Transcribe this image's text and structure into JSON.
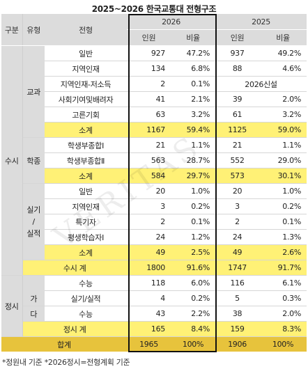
{
  "title": "2025~2026 한국교통대 전형구조",
  "headers": {
    "gubun": "구분",
    "yuhyeong": "유형",
    "jeonhyeong": "전형",
    "year2026": "2026",
    "year2025": "2025",
    "inwon": "인원",
    "biyul": "비율"
  },
  "groups": {
    "susi": "수시",
    "jeongsi": "정시",
    "gyogwa": "교과",
    "hakjong": "학종",
    "silgi": "실기\n/\n실적",
    "ga_da_1": "가",
    "ga_da_2": "다"
  },
  "rows": [
    {
      "name": "일반",
      "i26": "927",
      "r26": "47.2%",
      "i25": "937",
      "r25": "49.2%"
    },
    {
      "name": "지역인재",
      "i26": "134",
      "r26": "6.8%",
      "i25": "88",
      "r25": "4.6%"
    },
    {
      "name": "지역인재-저소득",
      "i26": "2",
      "r26": "0.1%",
      "note25": "2026신설"
    },
    {
      "name": "사회기여및배려자",
      "i26": "41",
      "r26": "2.1%",
      "i25": "39",
      "r25": "2.0%"
    },
    {
      "name": "고른기회",
      "i26": "63",
      "r26": "3.2%",
      "i25": "61",
      "r25": "3.2%"
    },
    {
      "name": "소계",
      "i26": "1167",
      "r26": "59.4%",
      "i25": "1125",
      "r25": "59.0%"
    },
    {
      "name": "학생부종합Ⅰ",
      "i26": "21",
      "r26": "1.1%",
      "i25": "21",
      "r25": "1.1%"
    },
    {
      "name": "학생부종합Ⅱ",
      "i26": "563",
      "r26": "28.7%",
      "i25": "552",
      "r25": "29.0%"
    },
    {
      "name": "소계",
      "i26": "584",
      "r26": "29.7%",
      "i25": "573",
      "r25": "30.1%"
    },
    {
      "name": "일반",
      "i26": "20",
      "r26": "1.0%",
      "i25": "20",
      "r25": "1.0%"
    },
    {
      "name": "지역인재",
      "i26": "3",
      "r26": "0.2%",
      "i25": "3",
      "r25": "0.2%"
    },
    {
      "name": "특기자",
      "i26": "2",
      "r26": "0.1%",
      "i25": "2",
      "r25": "0.1%"
    },
    {
      "name": "평생학습자Ⅰ",
      "i26": "24",
      "r26": "1.2%",
      "i25": "24",
      "r25": "1.3%"
    },
    {
      "name": "소계",
      "i26": "49",
      "r26": "2.5%",
      "i25": "49",
      "r25": "2.6%"
    },
    {
      "name": "수시 계",
      "i26": "1800",
      "r26": "91.6%",
      "i25": "1747",
      "r25": "91.7%"
    },
    {
      "name": "수능",
      "i26": "118",
      "r26": "6.0%",
      "i25": "116",
      "r25": "6.1%"
    },
    {
      "name": "실기/실적",
      "i26": "4",
      "r26": "0.2%",
      "i25": "5",
      "r25": "0.3%"
    },
    {
      "name": "수능",
      "i26": "43",
      "r26": "2.2%",
      "i25": "38",
      "r25": "2.0%"
    },
    {
      "name": "정시 계",
      "i26": "165",
      "r26": "8.4%",
      "i25": "159",
      "r25": "8.3%"
    },
    {
      "name": "합계",
      "i26": "1965",
      "r26": "100%",
      "i25": "1906",
      "r25": "100%"
    }
  ],
  "footnote": "*정원내 기준 *2026정시=전형계획 기준",
  "watermark": "VERITAS",
  "colors": {
    "subtotal": "#fff176",
    "total": "#e7c33c",
    "header": "#dcdcdc"
  }
}
